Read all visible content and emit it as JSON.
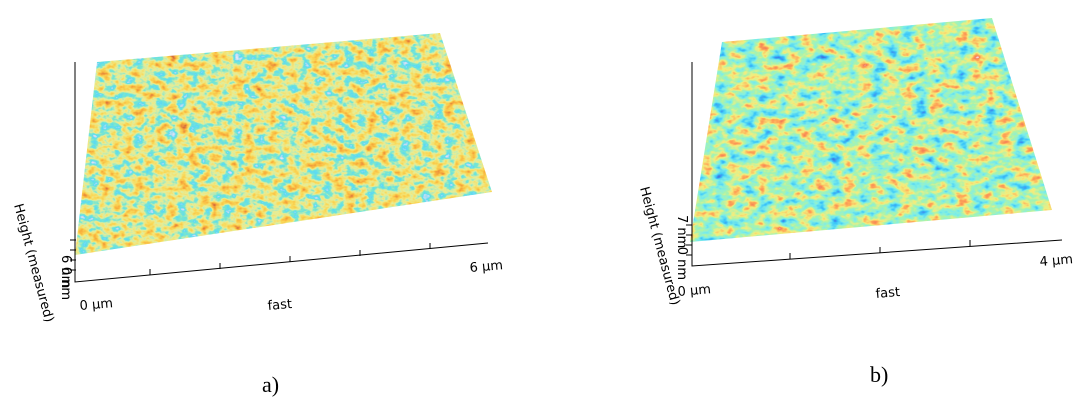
{
  "panels": [
    {
      "z_max": "6 nm",
      "z_min": "0 nm",
      "z_label": "Height (measured)",
      "x_min": "0 µm",
      "x_label": "fast",
      "x_max": "6 µm",
      "caption": "a)"
    },
    {
      "z_max": "7 nm",
      "z_min": "0 nm",
      "z_label": "Height (measured)",
      "x_min": "0 µm",
      "x_label": "fast",
      "x_max": "4 µm",
      "caption": "b)"
    }
  ]
}
